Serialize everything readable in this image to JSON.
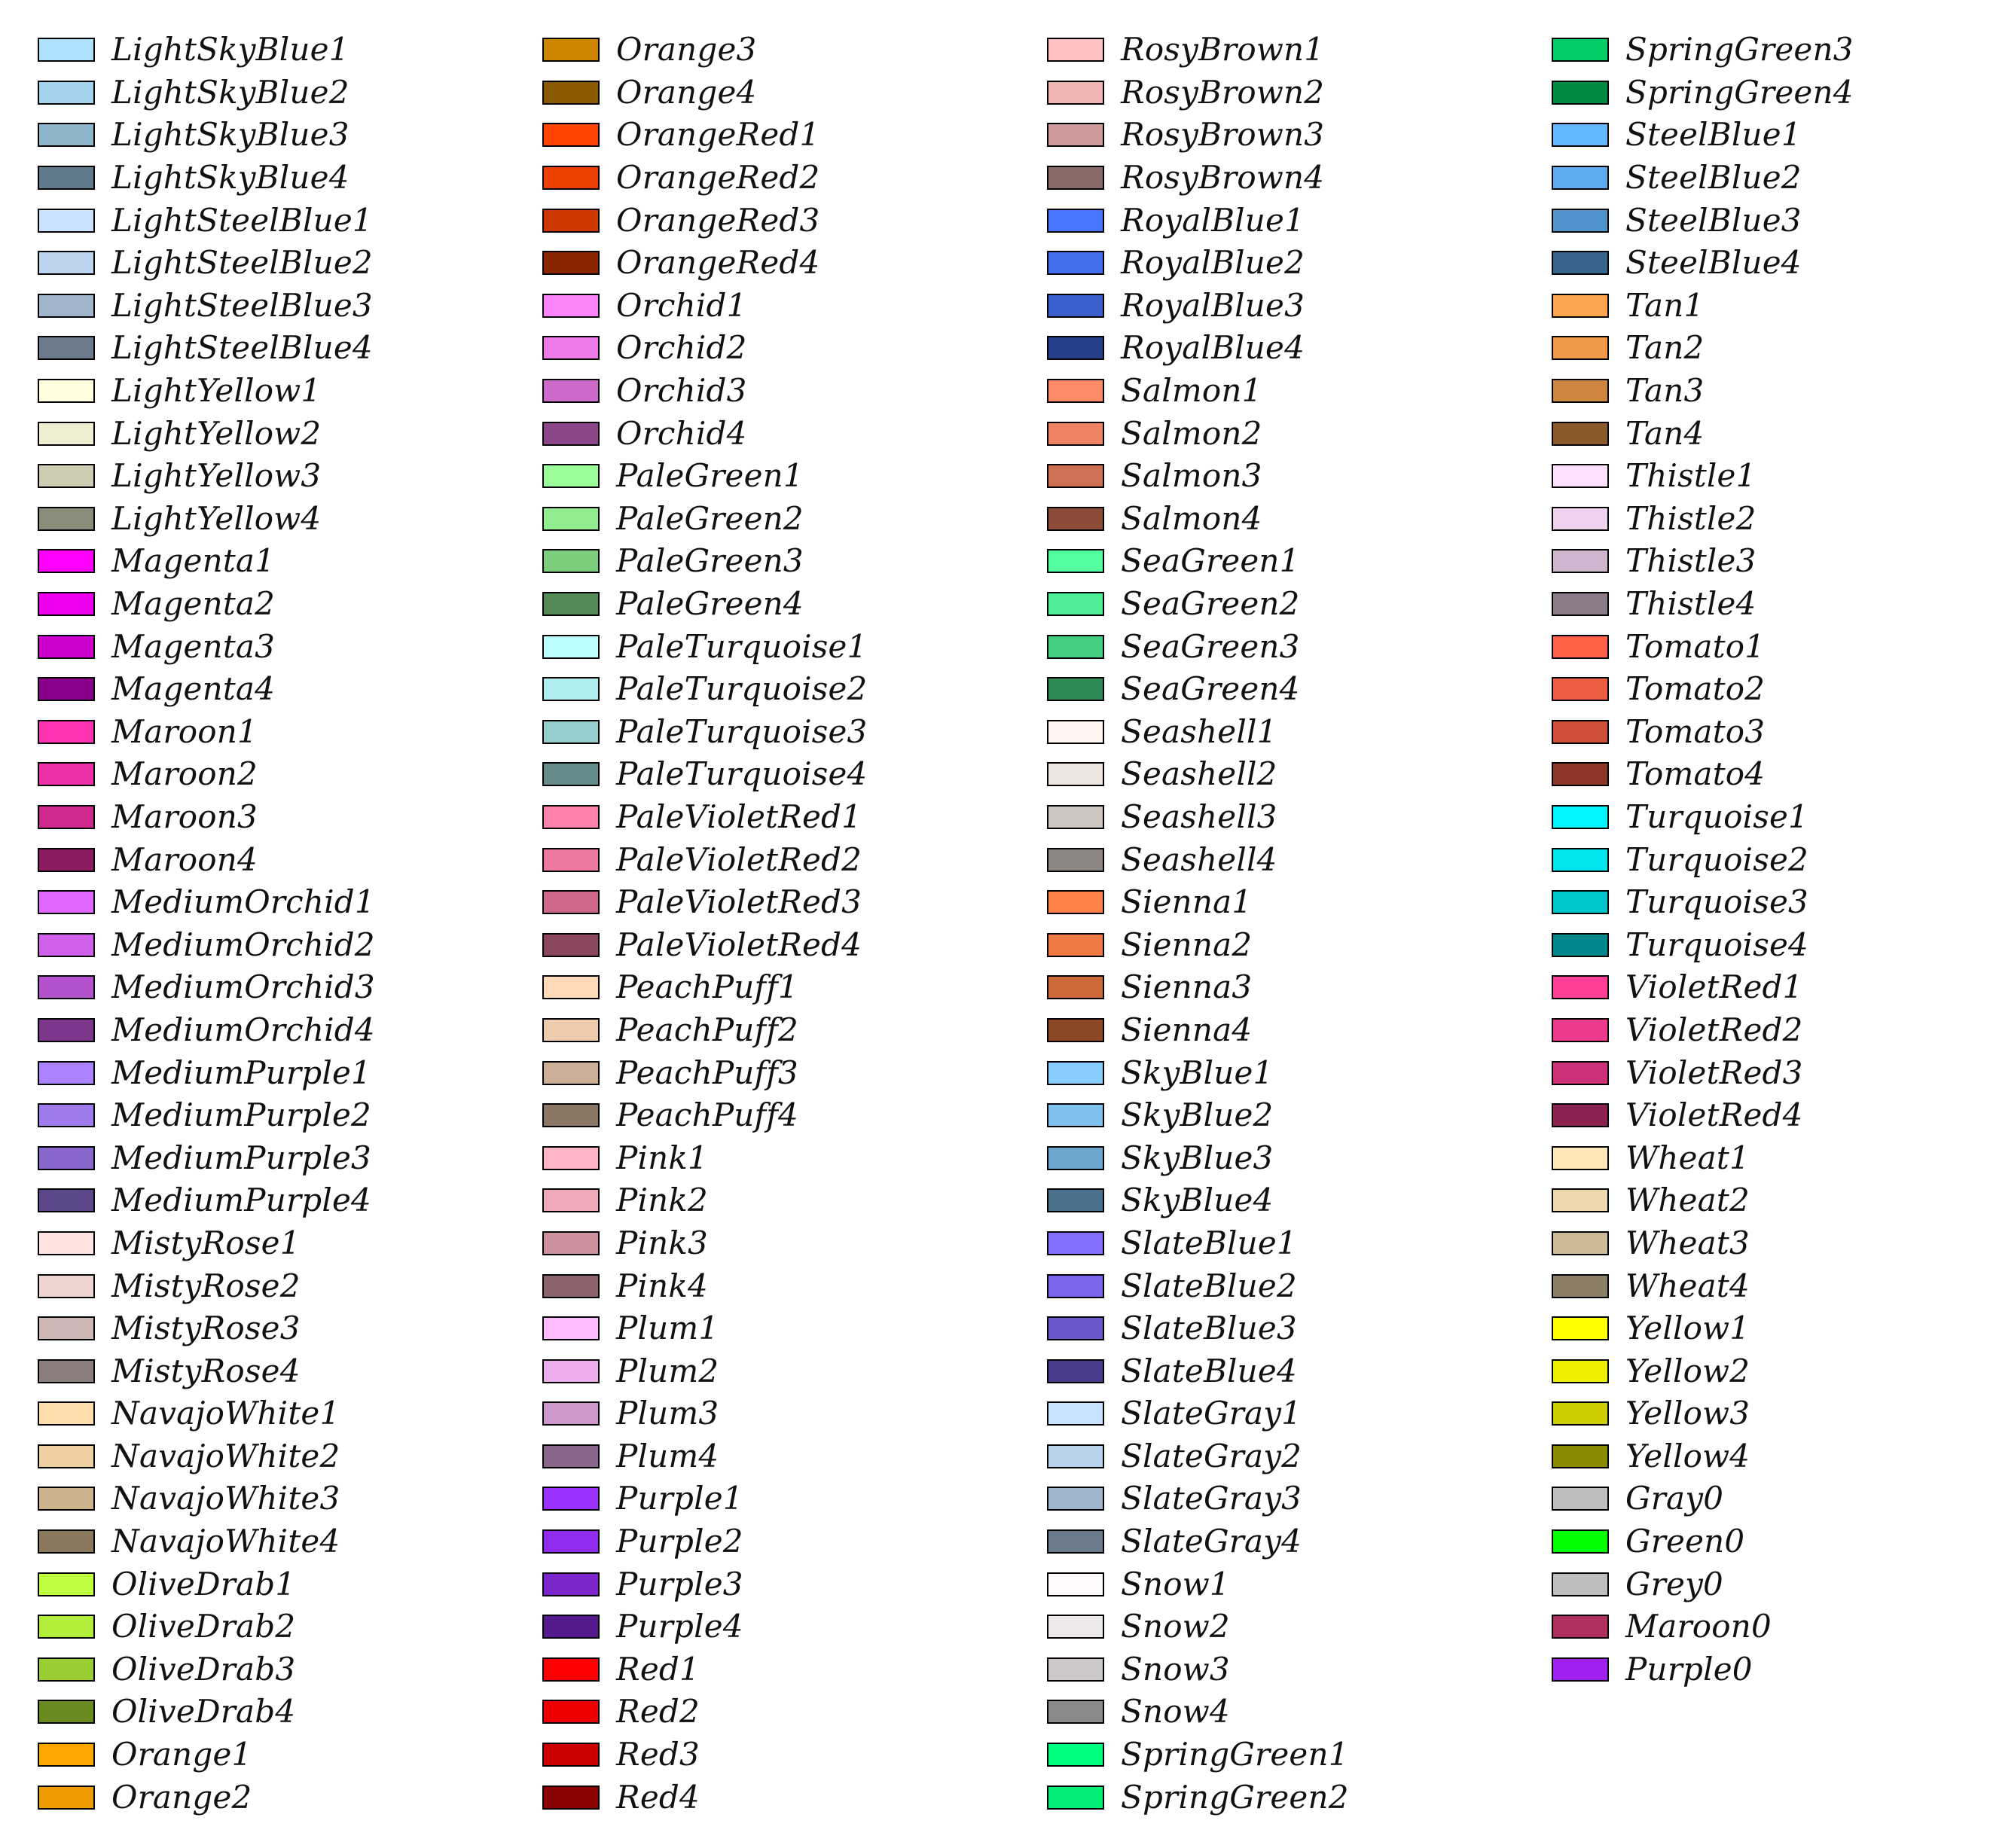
{
  "columns": [
    [
      {
        "name": "LightSkyBlue1",
        "color": "#B0E2FF"
      },
      {
        "name": "LightSkyBlue2",
        "color": "#A4D3EE"
      },
      {
        "name": "LightSkyBlue3",
        "color": "#8DB6CD"
      },
      {
        "name": "LightSkyBlue4",
        "color": "#607B8B"
      },
      {
        "name": "LightSteelBlue1",
        "color": "#CAE1FF"
      },
      {
        "name": "LightSteelBlue2",
        "color": "#BCD2EE"
      },
      {
        "name": "LightSteelBlue3",
        "color": "#A2B5CD"
      },
      {
        "name": "LightSteelBlue4",
        "color": "#6E7B8B"
      },
      {
        "name": "LightYellow1",
        "color": "#FFFFE0"
      },
      {
        "name": "LightYellow2",
        "color": "#EEEED1"
      },
      {
        "name": "LightYellow3",
        "color": "#CDCDB4"
      },
      {
        "name": "LightYellow4",
        "color": "#8B8B7A"
      },
      {
        "name": "Magenta1",
        "color": "#FF00FF"
      },
      {
        "name": "Magenta2",
        "color": "#EE00EE"
      },
      {
        "name": "Magenta3",
        "color": "#CD00CD"
      },
      {
        "name": "Magenta4",
        "color": "#8B008B"
      },
      {
        "name": "Maroon1",
        "color": "#FF34B3"
      },
      {
        "name": "Maroon2",
        "color": "#EE30A7"
      },
      {
        "name": "Maroon3",
        "color": "#CD2990"
      },
      {
        "name": "Maroon4",
        "color": "#8B1C62"
      },
      {
        "name": "MediumOrchid1",
        "color": "#E066FF"
      },
      {
        "name": "MediumOrchid2",
        "color": "#D15FEE"
      },
      {
        "name": "MediumOrchid3",
        "color": "#B452CD"
      },
      {
        "name": "MediumOrchid4",
        "color": "#7A378B"
      },
      {
        "name": "MediumPurple1",
        "color": "#AB82FF"
      },
      {
        "name": "MediumPurple2",
        "color": "#9F79EE"
      },
      {
        "name": "MediumPurple3",
        "color": "#8968CD"
      },
      {
        "name": "MediumPurple4",
        "color": "#5D478B"
      },
      {
        "name": "MistyRose1",
        "color": "#FFE4E1"
      },
      {
        "name": "MistyRose2",
        "color": "#EED5D2"
      },
      {
        "name": "MistyRose3",
        "color": "#CDB7B5"
      },
      {
        "name": "MistyRose4",
        "color": "#8B7D7B"
      },
      {
        "name": "NavajoWhite1",
        "color": "#FFDEAD"
      },
      {
        "name": "NavajoWhite2",
        "color": "#EECFA1"
      },
      {
        "name": "NavajoWhite3",
        "color": "#CDB38B"
      },
      {
        "name": "NavajoWhite4",
        "color": "#8B795E"
      },
      {
        "name": "OliveDrab1",
        "color": "#C0FF3E"
      },
      {
        "name": "OliveDrab2",
        "color": "#B3EE3A"
      },
      {
        "name": "OliveDrab3",
        "color": "#9ACD32"
      },
      {
        "name": "OliveDrab4",
        "color": "#698B22"
      },
      {
        "name": "Orange1",
        "color": "#FFA500"
      },
      {
        "name": "Orange2",
        "color": "#EE9A00"
      }
    ],
    [
      {
        "name": "Orange3",
        "color": "#CD8500"
      },
      {
        "name": "Orange4",
        "color": "#8B5A00"
      },
      {
        "name": "OrangeRed1",
        "color": "#FF4500"
      },
      {
        "name": "OrangeRed2",
        "color": "#EE4000"
      },
      {
        "name": "OrangeRed3",
        "color": "#CD3700"
      },
      {
        "name": "OrangeRed4",
        "color": "#8B2500"
      },
      {
        "name": "Orchid1",
        "color": "#FF83FA"
      },
      {
        "name": "Orchid2",
        "color": "#EE7AE9"
      },
      {
        "name": "Orchid3",
        "color": "#CD69C9"
      },
      {
        "name": "Orchid4",
        "color": "#8B4789"
      },
      {
        "name": "PaleGreen1",
        "color": "#9AFF9A"
      },
      {
        "name": "PaleGreen2",
        "color": "#90EE90"
      },
      {
        "name": "PaleGreen3",
        "color": "#7CCD7C"
      },
      {
        "name": "PaleGreen4",
        "color": "#548B54"
      },
      {
        "name": "PaleTurquoise1",
        "color": "#BBFFFF"
      },
      {
        "name": "PaleTurquoise2",
        "color": "#AEEEEE"
      },
      {
        "name": "PaleTurquoise3",
        "color": "#96CDCD"
      },
      {
        "name": "PaleTurquoise4",
        "color": "#668B8B"
      },
      {
        "name": "PaleVioletRed1",
        "color": "#FF82AB"
      },
      {
        "name": "PaleVioletRed2",
        "color": "#EE799F"
      },
      {
        "name": "PaleVioletRed3",
        "color": "#CD6889"
      },
      {
        "name": "PaleVioletRed4",
        "color": "#8B475D"
      },
      {
        "name": "PeachPuff1",
        "color": "#FFDAB9"
      },
      {
        "name": "PeachPuff2",
        "color": "#EECBAD"
      },
      {
        "name": "PeachPuff3",
        "color": "#CDAF95"
      },
      {
        "name": "PeachPuff4",
        "color": "#8B7765"
      },
      {
        "name": "Pink1",
        "color": "#FFB5C5"
      },
      {
        "name": "Pink2",
        "color": "#EEA9B8"
      },
      {
        "name": "Pink3",
        "color": "#CD919E"
      },
      {
        "name": "Pink4",
        "color": "#8B636C"
      },
      {
        "name": "Plum1",
        "color": "#FFBBFF"
      },
      {
        "name": "Plum2",
        "color": "#EEAEEE"
      },
      {
        "name": "Plum3",
        "color": "#CD96CD"
      },
      {
        "name": "Plum4",
        "color": "#8B668B"
      },
      {
        "name": "Purple1",
        "color": "#9B30FF"
      },
      {
        "name": "Purple2",
        "color": "#912CEE"
      },
      {
        "name": "Purple3",
        "color": "#7D26CD"
      },
      {
        "name": "Purple4",
        "color": "#551A8B"
      },
      {
        "name": "Red1",
        "color": "#FF0000"
      },
      {
        "name": "Red2",
        "color": "#EE0000"
      },
      {
        "name": "Red3",
        "color": "#CD0000"
      },
      {
        "name": "Red4",
        "color": "#8B0000"
      }
    ],
    [
      {
        "name": "RosyBrown1",
        "color": "#FFC1C1"
      },
      {
        "name": "RosyBrown2",
        "color": "#EEB4B4"
      },
      {
        "name": "RosyBrown3",
        "color": "#CD9B9B"
      },
      {
        "name": "RosyBrown4",
        "color": "#8B6969"
      },
      {
        "name": "RoyalBlue1",
        "color": "#4876FF"
      },
      {
        "name": "RoyalBlue2",
        "color": "#436EEE"
      },
      {
        "name": "RoyalBlue3",
        "color": "#3A5FCD"
      },
      {
        "name": "RoyalBlue4",
        "color": "#27408B"
      },
      {
        "name": "Salmon1",
        "color": "#FF8C69"
      },
      {
        "name": "Salmon2",
        "color": "#EE8262"
      },
      {
        "name": "Salmon3",
        "color": "#CD7054"
      },
      {
        "name": "Salmon4",
        "color": "#8B4C39"
      },
      {
        "name": "SeaGreen1",
        "color": "#54FF9F"
      },
      {
        "name": "SeaGreen2",
        "color": "#4EEE94"
      },
      {
        "name": "SeaGreen3",
        "color": "#43CD80"
      },
      {
        "name": "SeaGreen4",
        "color": "#2E8B57"
      },
      {
        "name": "Seashell1",
        "color": "#FFF5EE"
      },
      {
        "name": "Seashell2",
        "color": "#EEE5DE"
      },
      {
        "name": "Seashell3",
        "color": "#CDC5BF"
      },
      {
        "name": "Seashell4",
        "color": "#8B8682"
      },
      {
        "name": "Sienna1",
        "color": "#FF8247"
      },
      {
        "name": "Sienna2",
        "color": "#EE7942"
      },
      {
        "name": "Sienna3",
        "color": "#CD6839"
      },
      {
        "name": "Sienna4",
        "color": "#8B4726"
      },
      {
        "name": "SkyBlue1",
        "color": "#87CEFF"
      },
      {
        "name": "SkyBlue2",
        "color": "#7EC0EE"
      },
      {
        "name": "SkyBlue3",
        "color": "#6CA6CD"
      },
      {
        "name": "SkyBlue4",
        "color": "#4A708B"
      },
      {
        "name": "SlateBlue1",
        "color": "#836FFF"
      },
      {
        "name": "SlateBlue2",
        "color": "#7A67EE"
      },
      {
        "name": "SlateBlue3",
        "color": "#6959CD"
      },
      {
        "name": "SlateBlue4",
        "color": "#473C8B"
      },
      {
        "name": "SlateGray1",
        "color": "#C6E2FF"
      },
      {
        "name": "SlateGray2",
        "color": "#B9D3EE"
      },
      {
        "name": "SlateGray3",
        "color": "#9FB6CD"
      },
      {
        "name": "SlateGray4",
        "color": "#6C7B8B"
      },
      {
        "name": "Snow1",
        "color": "#FFFAFA"
      },
      {
        "name": "Snow2",
        "color": "#EEE9E9"
      },
      {
        "name": "Snow3",
        "color": "#CDC9C9"
      },
      {
        "name": "Snow4",
        "color": "#8B8989"
      },
      {
        "name": "SpringGreen1",
        "color": "#00FF7F"
      },
      {
        "name": "SpringGreen2",
        "color": "#00EE76"
      }
    ],
    [
      {
        "name": "SpringGreen3",
        "color": "#00CD66"
      },
      {
        "name": "SpringGreen4",
        "color": "#008B45"
      },
      {
        "name": "SteelBlue1",
        "color": "#63B8FF"
      },
      {
        "name": "SteelBlue2",
        "color": "#5CACEE"
      },
      {
        "name": "SteelBlue3",
        "color": "#4F94CD"
      },
      {
        "name": "SteelBlue4",
        "color": "#36648B"
      },
      {
        "name": "Tan1",
        "color": "#FFA54F"
      },
      {
        "name": "Tan2",
        "color": "#EE9A49"
      },
      {
        "name": "Tan3",
        "color": "#CD853F"
      },
      {
        "name": "Tan4",
        "color": "#8B5A2B"
      },
      {
        "name": "Thistle1",
        "color": "#FFE1FF"
      },
      {
        "name": "Thistle2",
        "color": "#EED2EE"
      },
      {
        "name": "Thistle3",
        "color": "#CDB5CD"
      },
      {
        "name": "Thistle4",
        "color": "#8B7B8B"
      },
      {
        "name": "Tomato1",
        "color": "#FF6347"
      },
      {
        "name": "Tomato2",
        "color": "#EE5C42"
      },
      {
        "name": "Tomato3",
        "color": "#CD4F39"
      },
      {
        "name": "Tomato4",
        "color": "#8B3626"
      },
      {
        "name": "Turquoise1",
        "color": "#00F5FF"
      },
      {
        "name": "Turquoise2",
        "color": "#00E5EE"
      },
      {
        "name": "Turquoise3",
        "color": "#00C5CD"
      },
      {
        "name": "Turquoise4",
        "color": "#00868B"
      },
      {
        "name": "VioletRed1",
        "color": "#FF3E96"
      },
      {
        "name": "VioletRed2",
        "color": "#EE3A8C"
      },
      {
        "name": "VioletRed3",
        "color": "#CD3278"
      },
      {
        "name": "VioletRed4",
        "color": "#8B2252"
      },
      {
        "name": "Wheat1",
        "color": "#FFE7BA"
      },
      {
        "name": "Wheat2",
        "color": "#EED8AE"
      },
      {
        "name": "Wheat3",
        "color": "#CDBA96"
      },
      {
        "name": "Wheat4",
        "color": "#8B7E66"
      },
      {
        "name": "Yellow1",
        "color": "#FFFF00"
      },
      {
        "name": "Yellow2",
        "color": "#EEEE00"
      },
      {
        "name": "Yellow3",
        "color": "#CDCD00"
      },
      {
        "name": "Yellow4",
        "color": "#8B8B00"
      },
      {
        "name": "Gray0",
        "color": "#BEBEBE"
      },
      {
        "name": "Green0",
        "color": "#00FF00"
      },
      {
        "name": "Grey0",
        "color": "#BEBEBE"
      },
      {
        "name": "Maroon0",
        "color": "#B03060"
      },
      {
        "name": "Purple0",
        "color": "#A020F0"
      }
    ]
  ]
}
